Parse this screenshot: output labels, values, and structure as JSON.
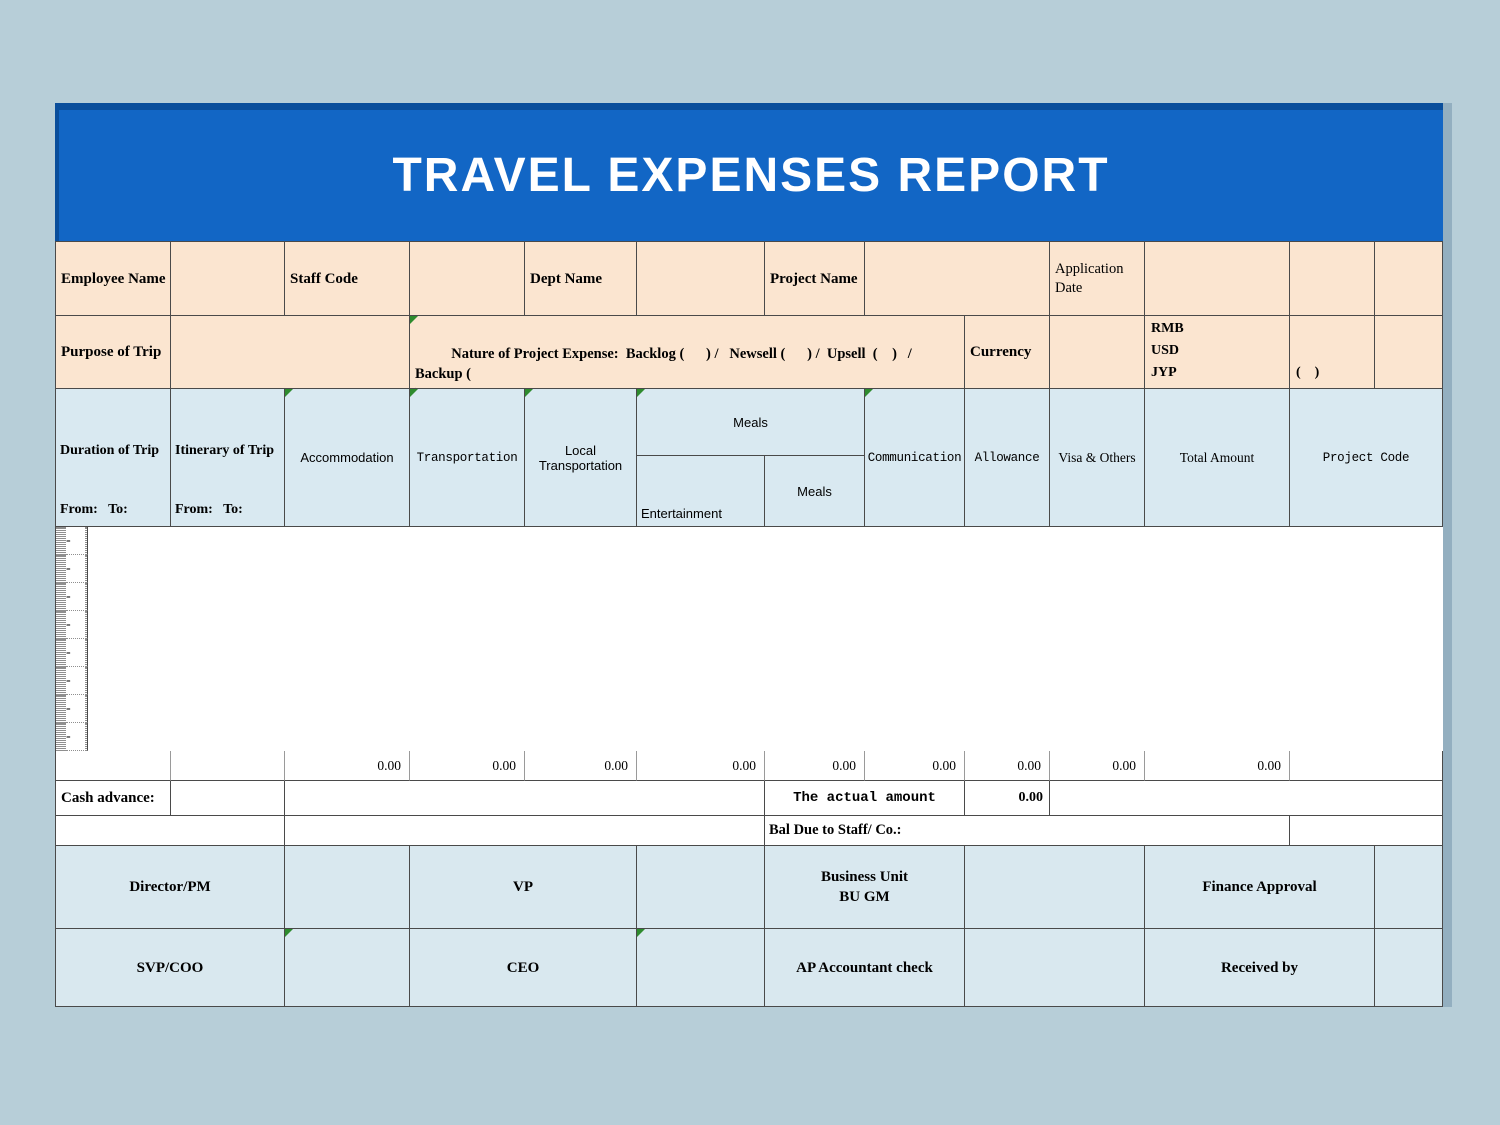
{
  "title": "TRAVEL EXPENSES REPORT",
  "info": {
    "employee_name": "Employee Name",
    "staff_code": "Staff Code",
    "dept_name": "Dept Name",
    "project_name": "Project Name",
    "application_date": "Application Date"
  },
  "purpose": {
    "label": "Purpose of Trip",
    "nature": "Nature of Project Expense:  Backlog (      ) /   Newsell (      ) /  Upsell  (    )   / Backup (\n)",
    "currency_label": "Currency",
    "codes": [
      "RMB",
      "USD",
      "JYP"
    ],
    "checkboxes": [
      "(    )",
      "(    )",
      "(    )"
    ]
  },
  "columns": {
    "duration_of_trip": "Duration of Trip",
    "duration_sub": "From:   To:",
    "itinerary_of_trip": "Itinerary of Trip",
    "itinerary_sub": "From:   To:",
    "accommodation": "Accommodation",
    "transportation": "Transportation",
    "local_transportation": "Local Transportation",
    "meals_group": "Meals",
    "entertainment": "Entertainment",
    "meals": "Meals",
    "communication": "Communication",
    "allowance": "Allowance",
    "visa_others": "Visa & Others",
    "total_amount": "Total Amount",
    "project_code": "Project Code"
  },
  "data_rows": [
    {
      "total_amount": "-"
    },
    {
      "total_amount": "-"
    },
    {
      "total_amount": "-"
    },
    {
      "total_amount": "-"
    },
    {
      "total_amount": "-"
    },
    {
      "total_amount": "-"
    },
    {
      "total_amount": "-"
    },
    {
      "total_amount": "-"
    }
  ],
  "totals": {
    "accommodation": "0.00",
    "transportation": "0.00",
    "local_transportation": "0.00",
    "entertainment": "0.00",
    "meals": "0.00",
    "communication": "0.00",
    "allowance": "0.00",
    "visa_others": "0.00",
    "total_amount": "0.00"
  },
  "cash_advance": {
    "label": "Cash advance:",
    "actual_amount_label": "The actual amount",
    "actual_amount_value": "0.00"
  },
  "bal_due_label": "Bal Due to Staff/ Co.:",
  "signatures": {
    "director_pm": "Director/PM",
    "vp": "VP",
    "business_unit_line1": "Business Unit",
    "business_unit_line2": "BU GM",
    "finance_approval": "Finance Approval",
    "svp_coo": "SVP/COO",
    "ceo": "CEO",
    "ap_accountant": "AP Accountant check",
    "received_by": "Received by"
  },
  "colors": {
    "banner_blue": "#1266c5",
    "banner_dark_blue": "#0a4e9b",
    "peach": "#fbe5d0",
    "header_blue": "#d9e9f1",
    "signature_blue": "#d9e8ef",
    "page_background": "#b7ced8",
    "indicator_green": "#2e8b2e"
  }
}
